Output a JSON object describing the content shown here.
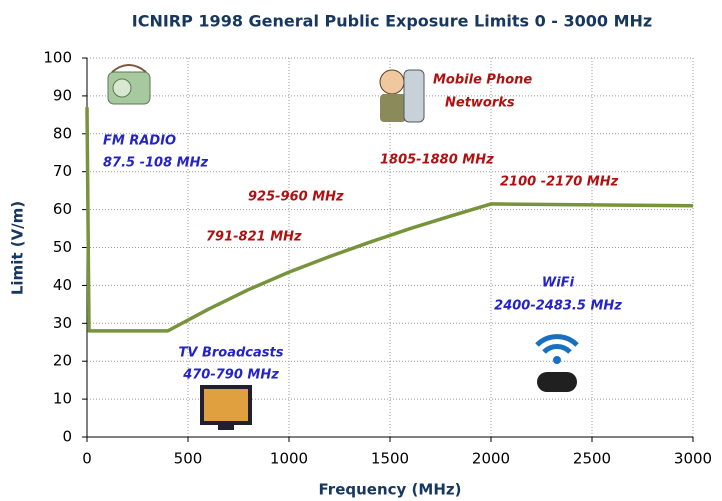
{
  "chart_data": {
    "type": "line",
    "title": "ICNIRP 1998 General Public Exposure Limits 0 - 3000 MHz",
    "x_label": "Frequency (MHz)",
    "y_label": "Limit (V/m)",
    "x": [
      0,
      10,
      400,
      600,
      800,
      1000,
      1200,
      1400,
      1600,
      1800,
      2000,
      3000
    ],
    "series": [
      {
        "color": "#77933c",
        "values": [
          87,
          28,
          28,
          33.7,
          38.9,
          43.5,
          47.6,
          51.4,
          55,
          58.3,
          61.5,
          61
        ]
      }
    ],
    "xlim": [
      0,
      3000
    ],
    "xticks": [
      0,
      500,
      1000,
      1500,
      2000,
      2500,
      3000
    ],
    "ylim": [
      0,
      100
    ],
    "yticks": [
      0,
      10,
      20,
      30,
      40,
      50,
      60,
      70,
      80,
      90,
      100
    ],
    "grid": true,
    "annotations": [
      "FM RADIO",
      "87.5 -108 MHz",
      "Mobile Phone",
      "Networks",
      "1805-1880 MHz",
      "2100 -2170 MHz",
      "925-960 MHz",
      "791-821 MHz",
      "WiFi",
      "2400-2483.5 MHz",
      "TV Broadcasts",
      "470-790 MHz"
    ]
  }
}
